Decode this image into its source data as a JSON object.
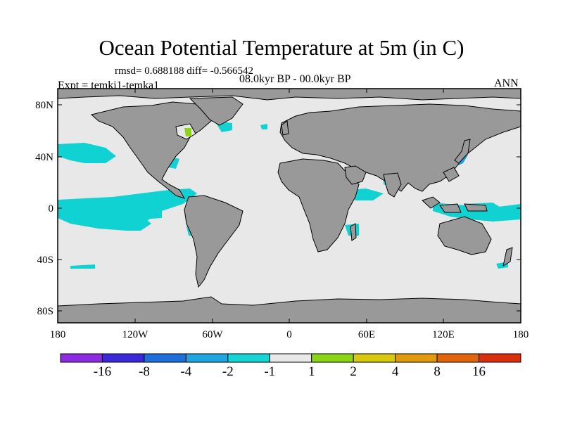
{
  "title": "Ocean Potential Temperature at 5m (in C)",
  "stats": "rmsd= 0.688188 diff= -0.566542",
  "period": "08.0kyr BP - 00.0kyr BP",
  "experiment": "Expt = temki1-temka1",
  "season": "ANN",
  "lat_ticks": [
    "80N",
    "40N",
    "0",
    "40S",
    "80S"
  ],
  "lon_ticks": [
    "180",
    "120W",
    "60W",
    "0",
    "60E",
    "120E",
    "180"
  ],
  "colorbar": {
    "labels": [
      "-16",
      "-8",
      "-4",
      "-2",
      "-1",
      "1",
      "2",
      "4",
      "8",
      "16"
    ],
    "colors": [
      "#8B2BE2",
      "#3A28D9",
      "#1E6FD9",
      "#1EA6E0",
      "#16D4D4",
      "#E8E8E8",
      "#8AD616",
      "#D8C80E",
      "#E09A0C",
      "#E0650C",
      "#D8300C"
    ]
  },
  "colors": {
    "ocean": "#E8E8E8",
    "land": "#999999",
    "cool": "#11D2D2",
    "cooler": "#1EA0E0",
    "warm": "#8CD41A"
  }
}
